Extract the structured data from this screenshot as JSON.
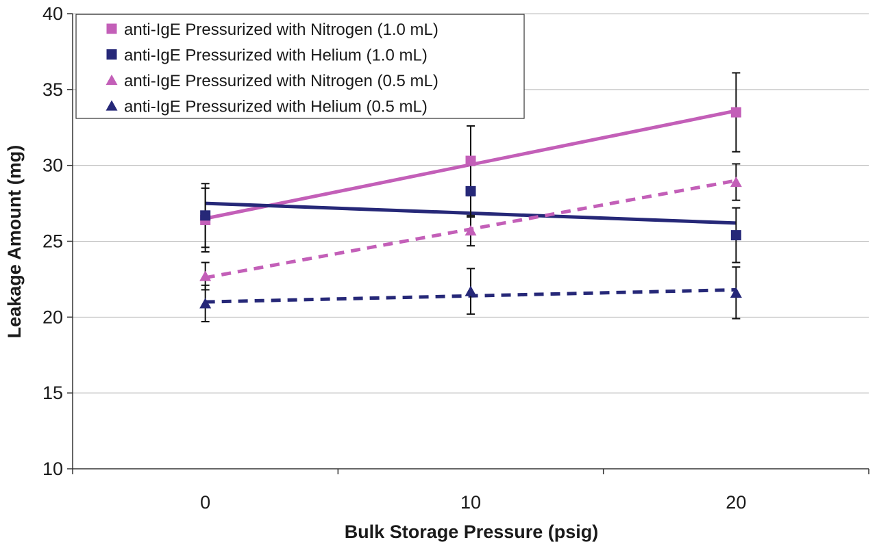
{
  "chart_data": {
    "type": "scatter",
    "xlabel": "Bulk Storage Pressure (psig)",
    "ylabel": "Leakage Amount (mg)",
    "xlim": [
      -5,
      25
    ],
    "ylim": [
      10,
      40
    ],
    "xticks": [
      0,
      10,
      20
    ],
    "yticks": [
      10,
      15,
      20,
      25,
      30,
      35,
      40
    ],
    "x_minor_ticks": [
      -5,
      5,
      15,
      25
    ],
    "grid": "horizontal",
    "legend_position": "top-left",
    "series": [
      {
        "name": "anti-IgE Pressurized with Nitrogen (1.0 mL)",
        "marker": "square",
        "color": "#c35fb8",
        "line_style": "solid",
        "x": [
          0,
          10,
          20
        ],
        "y": [
          26.4,
          30.3,
          33.5
        ],
        "error": [
          2.1,
          2.3,
          2.6
        ],
        "trendline": [
          [
            0,
            26.5
          ],
          [
            20,
            33.6
          ]
        ]
      },
      {
        "name": "anti-IgE Pressurized with Helium (1.0 mL)",
        "marker": "square",
        "color": "#262878",
        "line_style": "solid",
        "x": [
          0,
          10,
          20
        ],
        "y": [
          26.7,
          28.3,
          25.4
        ],
        "error": [
          2.1,
          1.7,
          1.8
        ],
        "trendline": [
          [
            0,
            27.5
          ],
          [
            20,
            26.2
          ]
        ]
      },
      {
        "name": "anti-IgE Pressurized with Nitrogen (0.5 mL)",
        "marker": "triangle",
        "color": "#c35fb8",
        "line_style": "dashed",
        "x": [
          0,
          10,
          20
        ],
        "y": [
          22.7,
          25.7,
          28.9
        ],
        "error": [
          0.9,
          1.0,
          1.2
        ],
        "trendline": [
          [
            0,
            22.6
          ],
          [
            20,
            29.0
          ]
        ]
      },
      {
        "name": "anti-IgE Pressurized with Helium (0.5 mL)",
        "marker": "triangle",
        "color": "#262878",
        "line_style": "dashed",
        "x": [
          0,
          10,
          20
        ],
        "y": [
          20.9,
          21.7,
          21.6
        ],
        "error": [
          1.2,
          1.5,
          1.7
        ],
        "trendline": [
          [
            0,
            21.0
          ],
          [
            20,
            21.8
          ]
        ]
      }
    ]
  }
}
